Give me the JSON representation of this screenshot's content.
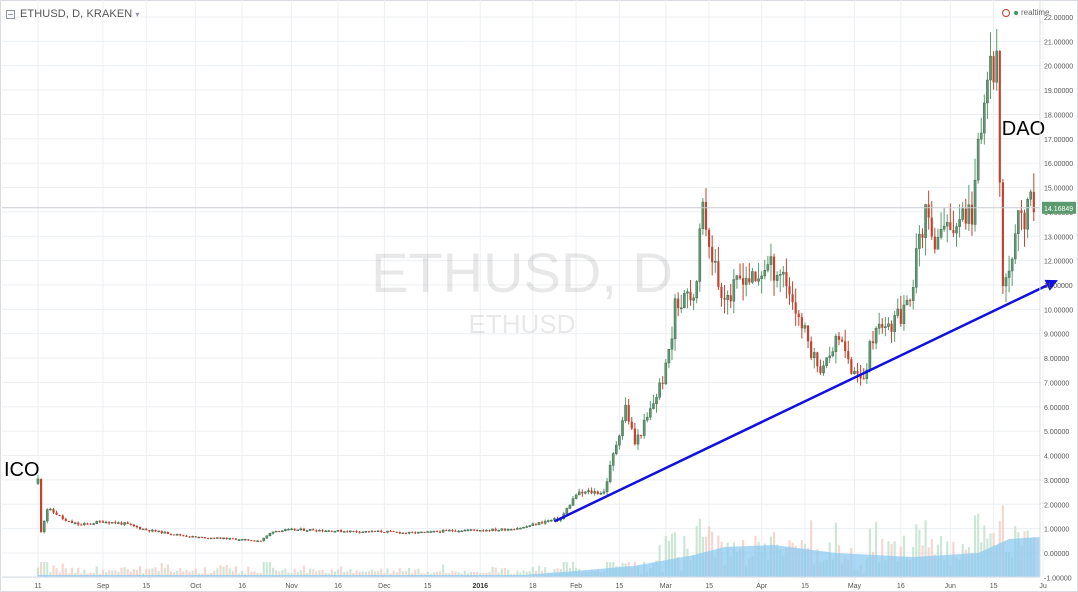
{
  "header": {
    "title": "ETHUSD, D, KRAKEN",
    "realtime_label": "realtime"
  },
  "colors": {
    "up": "#5b9a6e",
    "down": "#c2422e",
    "grid": "#eceff2",
    "trendline": "#1010e0",
    "volume_ma": "#8ccaf0",
    "price_tag": "#5b9a6e"
  },
  "chart_data": {
    "type": "candlestick",
    "symbol": "ETHUSD",
    "interval": "D",
    "exchange": "KRAKEN",
    "watermark": "ETHUSD, D",
    "watermark_sub": "ETHUSD",
    "last_price": "14.16849",
    "y_axis": {
      "range": [
        -1,
        22.5
      ],
      "ticks": [
        "-1.00000",
        "0.00000",
        "1.00000",
        "2.00000",
        "3.00000",
        "4.00000",
        "5.00000",
        "6.00000",
        "7.00000",
        "8.00000",
        "9.00000",
        "10.00000",
        "11.00000",
        "12.00000",
        "13.00000",
        "14.00000",
        "15.00000",
        "16.00000",
        "17.00000",
        "18.00000",
        "19.00000",
        "20.00000",
        "21.00000",
        "22.00000"
      ]
    },
    "x_axis": {
      "start_date": "2015-08-11",
      "end_date": "2016-06-30",
      "ticks": [
        {
          "label": "11",
          "date": "2015-08-11"
        },
        {
          "label": "Sep",
          "date": "2015-09-01"
        },
        {
          "label": "15",
          "date": "2015-09-15"
        },
        {
          "label": "Oct",
          "date": "2015-10-01"
        },
        {
          "label": "16",
          "date": "2015-10-16"
        },
        {
          "label": "Nov",
          "date": "2015-11-01"
        },
        {
          "label": "16",
          "date": "2015-11-16"
        },
        {
          "label": "Dec",
          "date": "2015-12-01"
        },
        {
          "label": "15",
          "date": "2015-12-15"
        },
        {
          "label": "2016",
          "date": "2016-01-01",
          "bold": true
        },
        {
          "label": "18",
          "date": "2016-01-18"
        },
        {
          "label": "Feb",
          "date": "2016-02-01"
        },
        {
          "label": "15",
          "date": "2016-02-15"
        },
        {
          "label": "Mar",
          "date": "2016-03-01"
        },
        {
          "label": "15",
          "date": "2016-03-15"
        },
        {
          "label": "Apr",
          "date": "2016-04-01"
        },
        {
          "label": "15",
          "date": "2016-04-15"
        },
        {
          "label": "May",
          "date": "2016-05-01"
        },
        {
          "label": "16",
          "date": "2016-05-16"
        },
        {
          "label": "Jun",
          "date": "2016-06-01"
        },
        {
          "label": "15",
          "date": "2016-06-15"
        },
        {
          "label": "Ju",
          "date": "2016-07-01"
        }
      ]
    },
    "price_points": [
      [
        "2015-08-11",
        3.0
      ],
      [
        "2015-08-12",
        0.9
      ],
      [
        "2015-08-14",
        1.8
      ],
      [
        "2015-08-17",
        1.6
      ],
      [
        "2015-08-20",
        1.3
      ],
      [
        "2015-08-25",
        1.15
      ],
      [
        "2015-09-01",
        1.3
      ],
      [
        "2015-09-08",
        1.2
      ],
      [
        "2015-09-15",
        0.95
      ],
      [
        "2015-09-25",
        0.75
      ],
      [
        "2015-10-01",
        0.65
      ],
      [
        "2015-10-10",
        0.6
      ],
      [
        "2015-10-16",
        0.55
      ],
      [
        "2015-10-22",
        0.5
      ],
      [
        "2015-10-26",
        0.9
      ],
      [
        "2015-11-01",
        0.95
      ],
      [
        "2015-11-08",
        0.95
      ],
      [
        "2015-11-16",
        0.9
      ],
      [
        "2015-11-25",
        0.88
      ],
      [
        "2015-12-01",
        0.88
      ],
      [
        "2015-12-08",
        0.82
      ],
      [
        "2015-12-15",
        0.85
      ],
      [
        "2015-12-22",
        0.92
      ],
      [
        "2015-12-31",
        0.95
      ],
      [
        "2016-01-07",
        0.95
      ],
      [
        "2016-01-15",
        1.05
      ],
      [
        "2016-01-22",
        1.3
      ],
      [
        "2016-01-27",
        1.4
      ],
      [
        "2016-02-01",
        2.4
      ],
      [
        "2016-02-05",
        2.5
      ],
      [
        "2016-02-10",
        2.5
      ],
      [
        "2016-02-14",
        4.5
      ],
      [
        "2016-02-17",
        6.0
      ],
      [
        "2016-02-20",
        4.5
      ],
      [
        "2016-02-24",
        5.5
      ],
      [
        "2016-02-27",
        6.5
      ],
      [
        "2016-03-01",
        7.5
      ],
      [
        "2016-03-04",
        10.0
      ],
      [
        "2016-03-08",
        11.0
      ],
      [
        "2016-03-10",
        10.5
      ],
      [
        "2016-03-13",
        14.0
      ],
      [
        "2016-03-15",
        13.0
      ],
      [
        "2016-03-18",
        11.0
      ],
      [
        "2016-03-22",
        10.5
      ],
      [
        "2016-03-26",
        11.5
      ],
      [
        "2016-03-30",
        11.0
      ],
      [
        "2016-04-02",
        11.8
      ],
      [
        "2016-04-08",
        11.5
      ],
      [
        "2016-04-12",
        10.0
      ],
      [
        "2016-04-15",
        9.0
      ],
      [
        "2016-04-18",
        8.0
      ],
      [
        "2016-04-21",
        7.5
      ],
      [
        "2016-04-25",
        9.0
      ],
      [
        "2016-04-28",
        8.0
      ],
      [
        "2016-05-01",
        7.4
      ],
      [
        "2016-05-04",
        7.3
      ],
      [
        "2016-05-07",
        9.0
      ],
      [
        "2016-05-10",
        9.5
      ],
      [
        "2016-05-14",
        9.5
      ],
      [
        "2016-05-18",
        10.0
      ],
      [
        "2016-05-21",
        12.0
      ],
      [
        "2016-05-24",
        14.0
      ],
      [
        "2016-05-27",
        12.0
      ],
      [
        "2016-05-30",
        13.8
      ],
      [
        "2016-06-02",
        13.5
      ],
      [
        "2016-06-05",
        14.0
      ],
      [
        "2016-06-08",
        14.0
      ],
      [
        "2016-06-12",
        18.7
      ],
      [
        "2016-06-16",
        20.5
      ],
      [
        "2016-06-17",
        15.0
      ],
      [
        "2016-06-18",
        11.0
      ],
      [
        "2016-06-20",
        12.0
      ],
      [
        "2016-06-23",
        13.5
      ],
      [
        "2016-06-27",
        14.2
      ],
      [
        "2016-06-28",
        14.16849
      ]
    ],
    "volume_ma_points": [
      [
        "2015-08-11",
        0.05
      ],
      [
        "2016-01-15",
        0.05
      ],
      [
        "2016-02-01",
        0.15
      ],
      [
        "2016-02-20",
        0.28
      ],
      [
        "2016-03-10",
        0.55
      ],
      [
        "2016-03-20",
        0.75
      ],
      [
        "2016-04-05",
        0.8
      ],
      [
        "2016-04-25",
        0.6
      ],
      [
        "2016-05-20",
        0.5
      ],
      [
        "2016-06-10",
        0.6
      ],
      [
        "2016-06-20",
        0.95
      ],
      [
        "2016-06-30",
        1.0
      ]
    ],
    "trendline": {
      "from": [
        "2016-01-25",
        1.3
      ],
      "to": [
        "2016-06-30",
        11.2
      ]
    },
    "annotations": [
      {
        "text": "ICO",
        "date": "2015-08-11",
        "value": 3.0
      },
      {
        "text": "DAO",
        "date": "2016-06-17",
        "value": 17.0
      }
    ]
  }
}
